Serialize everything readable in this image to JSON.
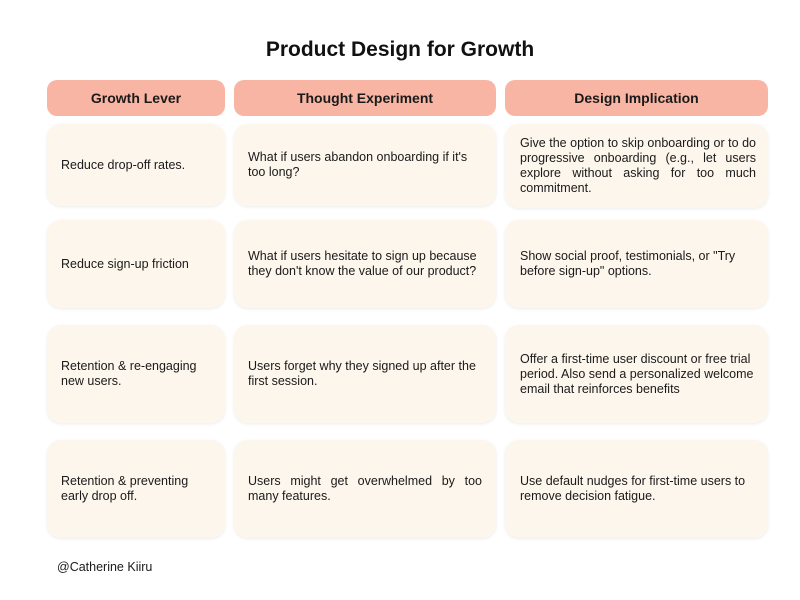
{
  "title": "Product Design for Growth",
  "headers": {
    "growth_lever": "Growth Lever",
    "thought_experiment": "Thought Experiment",
    "design_implication": "Design Implication"
  },
  "rows": [
    {
      "lever": "Reduce drop-off rates.",
      "experiment": "What if users abandon onboarding if it's too long?",
      "implication": "Give the option to skip onboarding or to do progressive onboarding (e.g., let users explore without asking for too much commitment."
    },
    {
      "lever": "Reduce sign-up friction",
      "experiment": "What if users hesitate to sign up because they don't know the value of our product?",
      "implication": "Show social proof, testimonials, or \"Try before sign-up\" options."
    },
    {
      "lever": "Retention & re-engaging new users.",
      "experiment": "Users forget why they signed up after the first session.",
      "implication": "Offer a first-time user discount or free trial period. Also send a personalized welcome email that reinforces benefits"
    },
    {
      "lever": "Retention & preventing early drop off.",
      "experiment": "Users might get overwhelmed by too many features.",
      "implication": "Use default nudges for first-time users to remove decision fatigue."
    }
  ],
  "footer": "@Catherine Kiiru",
  "colors": {
    "header_bg": "#f9b5a3",
    "cell_bg": "#fdf6ec"
  }
}
